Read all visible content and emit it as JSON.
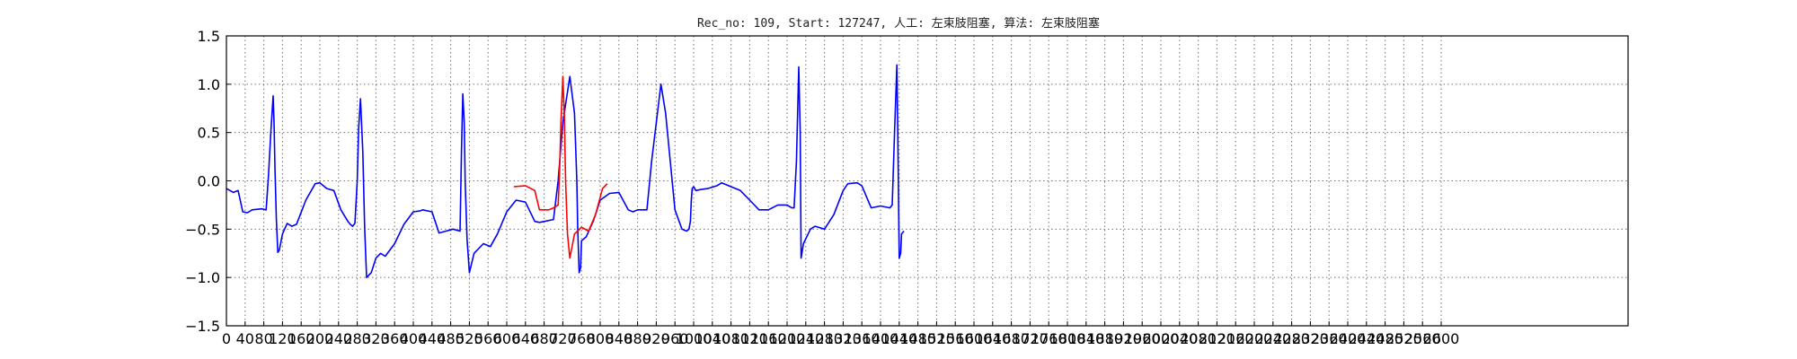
{
  "title": "Rec_no: 109, Start: 127247, 人工: 左束肢阻塞, 算法: 左束肢阻塞",
  "chart_data": {
    "type": "line",
    "title": "Rec_no: 109, Start: 127247, 人工: 左束肢阻塞, 算法: 左束肢阻塞",
    "xlabel": "",
    "ylabel": "",
    "xlim": [
      0,
      3000
    ],
    "ylim": [
      -1.5,
      1.5
    ],
    "grid": true,
    "x_ticks": [
      0,
      40,
      80,
      120,
      160,
      200,
      240,
      280,
      320,
      360,
      400,
      440,
      480,
      520,
      560,
      600,
      640,
      680,
      720,
      760,
      800,
      840,
      880,
      920,
      960,
      1000,
      1040,
      1080,
      1120,
      1160,
      1200,
      1240,
      1280,
      1320,
      1360,
      1400,
      1440,
      1480,
      1520,
      1560,
      1600,
      1640,
      1680,
      1720,
      1760,
      1800,
      1840,
      1880,
      1920,
      1960,
      2000,
      2040,
      2080,
      2120,
      2160,
      2200,
      2240,
      2280,
      2320,
      2360,
      2400,
      2440,
      2480,
      2520,
      2560,
      2600
    ],
    "y_ticks": [
      "1.5",
      "1.0",
      "0.5",
      "0.0",
      "−0.5",
      "−1.0",
      "−1.5"
    ],
    "y_tick_values": [
      1.5,
      1.0,
      0.5,
      0.0,
      -0.5,
      -1.0,
      -1.5
    ],
    "series": [
      {
        "color": "#0000ff",
        "x": [
          0,
          15,
          25,
          35,
          45,
          55,
          75,
          85,
          90,
          95,
          100,
          102,
          104,
          107,
          110,
          113,
          120,
          130,
          140,
          150,
          170,
          190,
          200,
          215,
          230,
          245,
          260,
          265,
          270,
          275,
          280,
          283,
          287,
          292,
          296,
          300,
          310,
          320,
          330,
          340,
          360,
          380,
          400,
          415,
          420,
          440,
          455,
          470,
          485,
          500,
          503,
          506,
          509,
          511,
          515,
          520,
          530,
          550,
          565,
          580,
          600,
          620,
          640,
          660,
          670,
          700,
          710,
          720,
          735,
          745,
          750,
          752,
          755,
          758,
          760,
          765,
          770,
          785,
          800,
          820,
          840,
          860,
          870,
          880,
          900,
          910,
          930,
          940,
          960,
          975,
          985,
          990,
          993,
          995,
          997,
          1000,
          1005,
          1015,
          1030,
          1050,
          1060,
          1080,
          1100,
          1120,
          1140,
          1160,
          1180,
          1200,
          1210,
          1215,
          1220,
          1223,
          1225,
          1228,
          1230,
          1235,
          1250,
          1260,
          1280,
          1300,
          1320,
          1330,
          1350,
          1360,
          1380,
          1400,
          1420,
          1425,
          1430,
          1435,
          1437,
          1440,
          1443,
          1445,
          1450
        ],
        "y": [
          -0.08,
          -0.12,
          -0.1,
          -0.32,
          -0.33,
          -0.3,
          -0.29,
          -0.3,
          0.05,
          0.5,
          0.88,
          0.6,
          0.1,
          -0.4,
          -0.74,
          -0.72,
          -0.55,
          -0.44,
          -0.47,
          -0.45,
          -0.2,
          -0.03,
          -0.02,
          -0.08,
          -0.1,
          -0.3,
          -0.42,
          -0.45,
          -0.47,
          -0.44,
          0.0,
          0.55,
          0.85,
          0.3,
          -0.5,
          -1.0,
          -0.95,
          -0.8,
          -0.75,
          -0.78,
          -0.65,
          -0.45,
          -0.32,
          -0.31,
          -0.3,
          -0.32,
          -0.54,
          -0.52,
          -0.5,
          -0.52,
          0.3,
          0.9,
          0.6,
          0.0,
          -0.6,
          -0.95,
          -0.75,
          -0.65,
          -0.68,
          -0.55,
          -0.32,
          -0.2,
          -0.22,
          -0.42,
          -0.43,
          -0.4,
          0.0,
          0.6,
          1.08,
          0.7,
          0.0,
          -0.5,
          -0.95,
          -0.9,
          -0.62,
          -0.6,
          -0.58,
          -0.42,
          -0.2,
          -0.13,
          -0.12,
          -0.3,
          -0.32,
          -0.3,
          -0.3,
          0.2,
          1.0,
          0.7,
          -0.3,
          -0.5,
          -0.52,
          -0.5,
          -0.42,
          -0.2,
          -0.08,
          -0.06,
          -0.1,
          -0.09,
          -0.08,
          -0.05,
          -0.02,
          -0.06,
          -0.1,
          -0.2,
          -0.3,
          -0.3,
          -0.25,
          -0.25,
          -0.28,
          -0.28,
          0.2,
          0.8,
          1.18,
          0.5,
          -0.8,
          -0.65,
          -0.5,
          -0.47,
          -0.5,
          -0.35,
          -0.1,
          -0.03,
          -0.02,
          -0.05,
          -0.28,
          -0.26,
          -0.28,
          -0.25,
          0.5,
          1.2,
          0.5,
          -0.8,
          -0.75,
          -0.55,
          -0.52
        ]
      },
      {
        "color": "#ff0000",
        "x": [
          615,
          640,
          660,
          670,
          690,
          700,
          710,
          713,
          716,
          720,
          723,
          726,
          730,
          735,
          745,
          760,
          775,
          790,
          805,
          815
        ],
        "y": [
          -0.06,
          -0.05,
          -0.1,
          -0.3,
          -0.3,
          -0.28,
          -0.25,
          0.1,
          0.6,
          1.08,
          0.7,
          0.0,
          -0.55,
          -0.8,
          -0.55,
          -0.48,
          -0.52,
          -0.35,
          -0.08,
          -0.03
        ]
      }
    ]
  }
}
